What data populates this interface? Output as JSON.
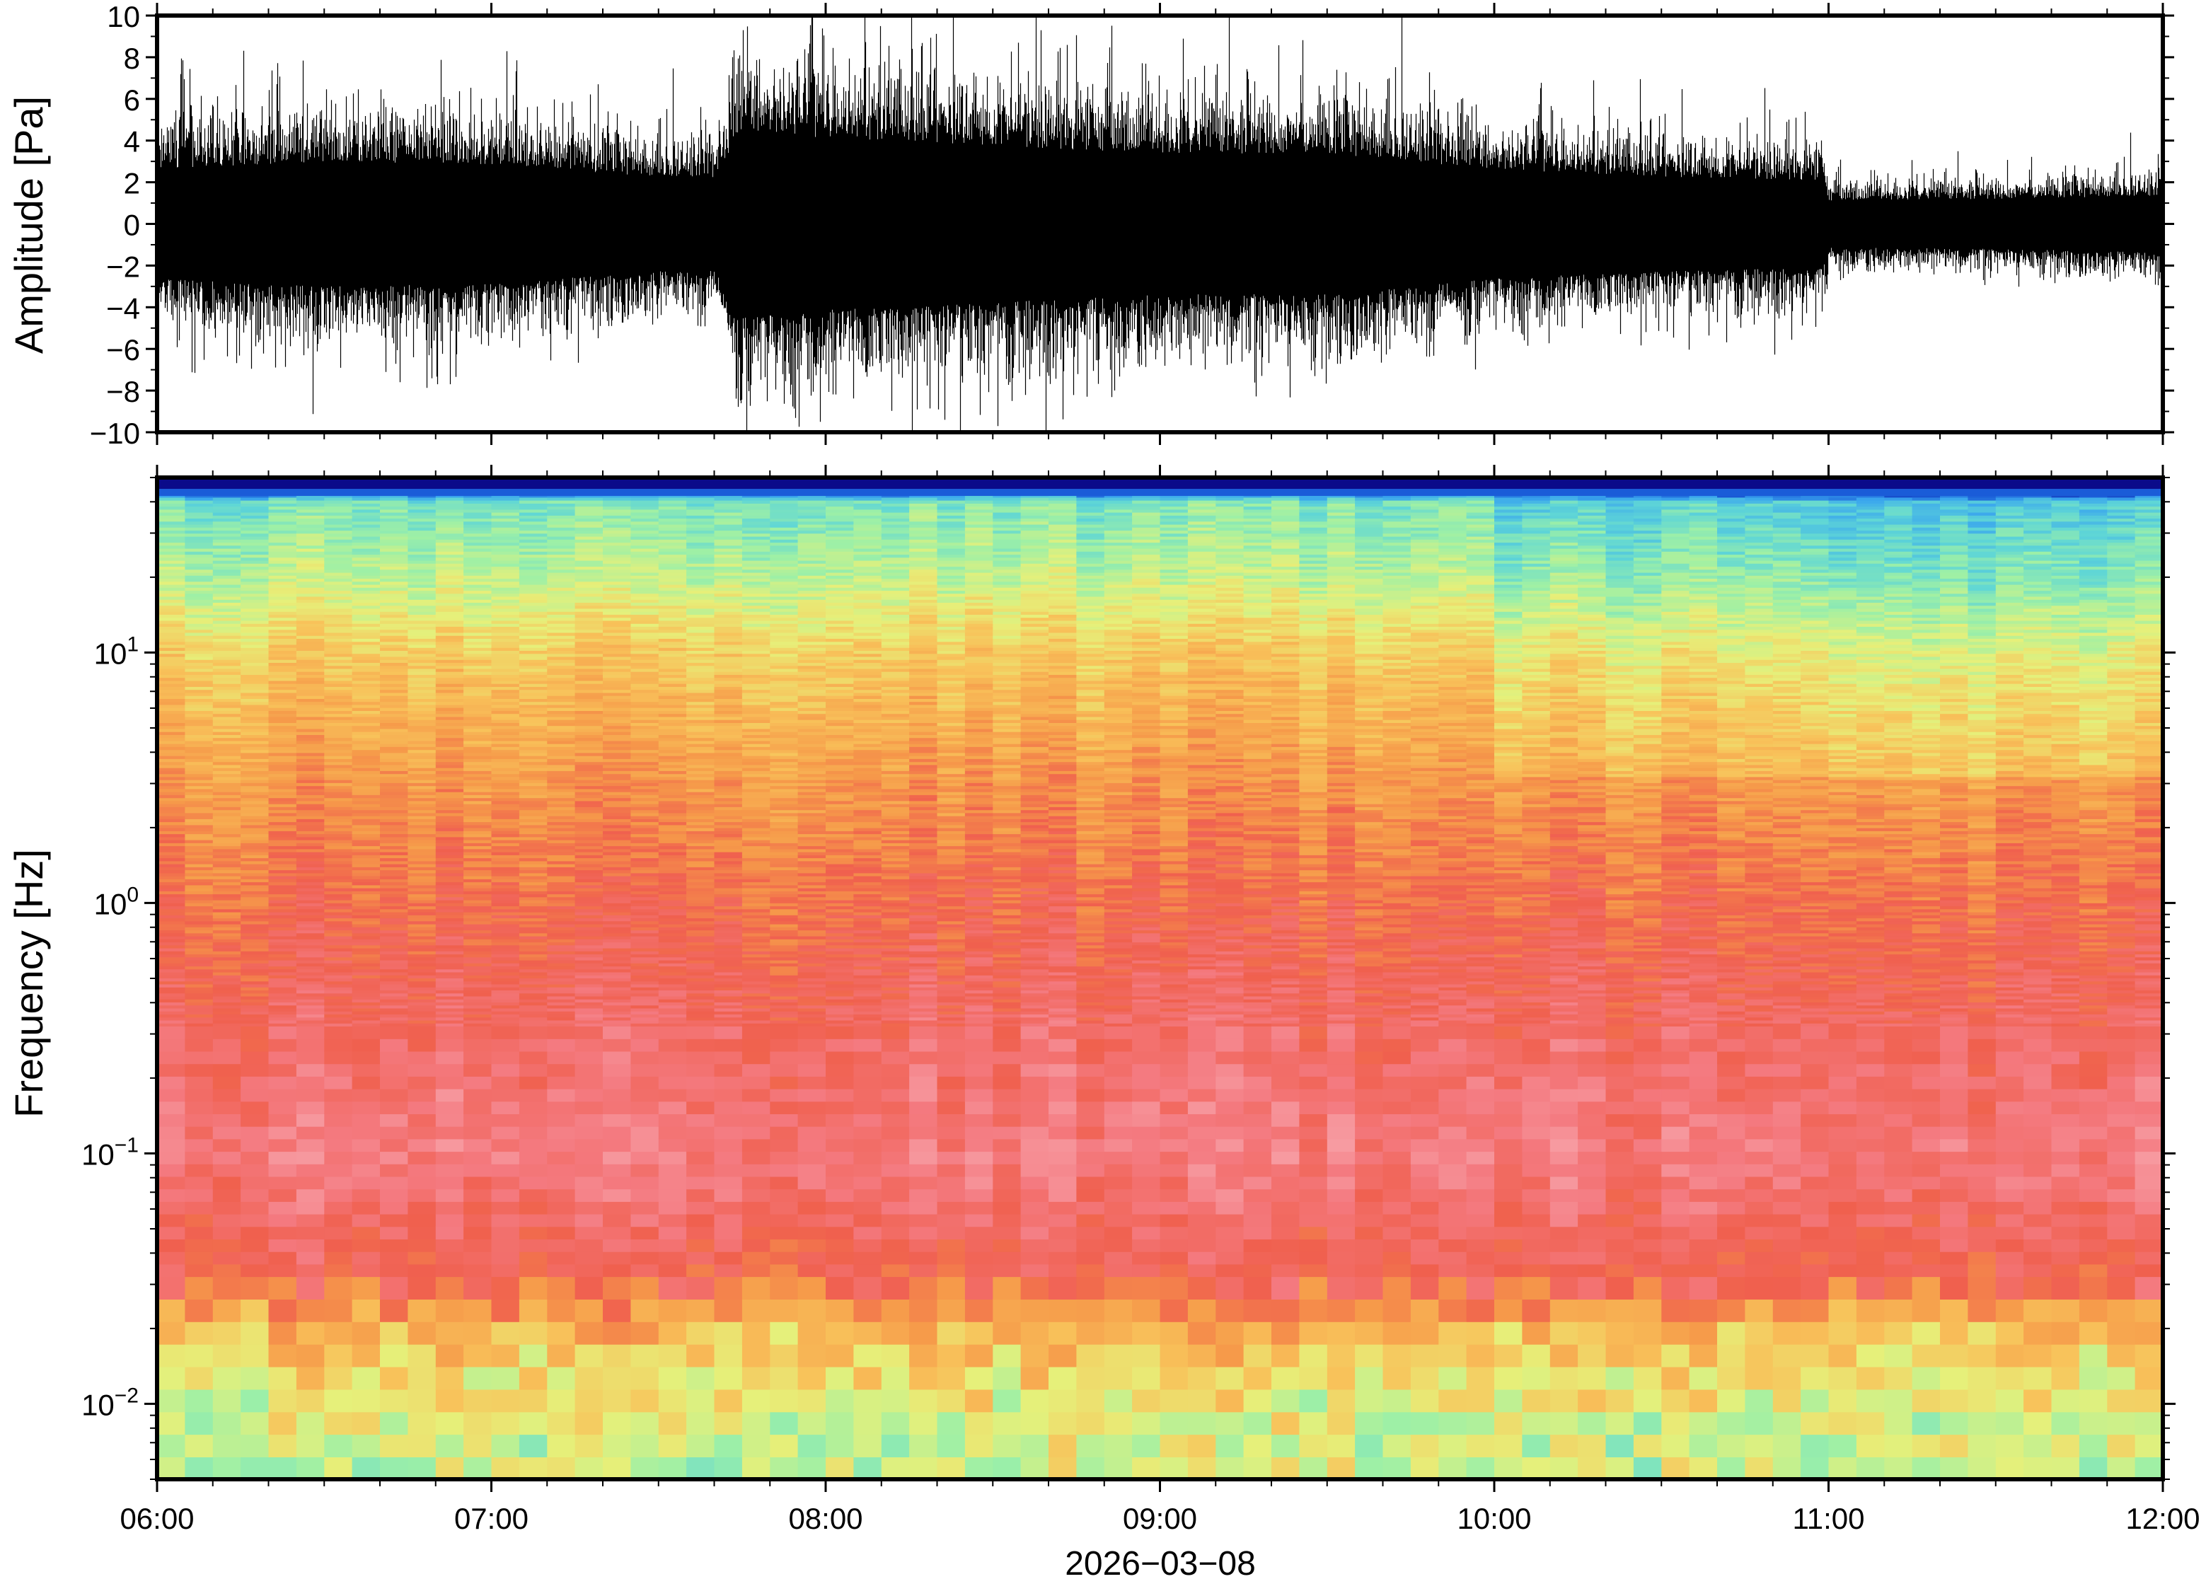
{
  "chart_data": [
    {
      "type": "line",
      "panel": "waveform",
      "ylabel": "Amplitude [Pa]",
      "ylim": [
        -10,
        10
      ],
      "yticks": [
        10,
        8,
        6,
        4,
        2,
        0,
        -2,
        -4,
        -6,
        -8,
        -10
      ],
      "ytick_labels": [
        "10",
        "8",
        "6",
        "4",
        "2",
        "0",
        "−2",
        "−4",
        "−6",
        "−8",
        "−10"
      ],
      "xlim": [
        "06:00",
        "12:00"
      ],
      "color": "#000000",
      "envelope": {
        "time": [
          "06:00",
          "06:30",
          "07:00",
          "07:30",
          "07:40",
          "07:45",
          "08:00",
          "08:30",
          "09:00",
          "09:30",
          "10:00",
          "10:30",
          "10:59",
          "11:00",
          "11:30",
          "12:00"
        ],
        "half_amplitude_pa": [
          3.5,
          4.0,
          3.8,
          3.0,
          3.0,
          6.0,
          5.5,
          5.0,
          4.5,
          4.5,
          3.5,
          3.0,
          2.8,
          1.5,
          1.6,
          1.8
        ]
      }
    },
    {
      "type": "heatmap",
      "panel": "spectrogram",
      "ylabel": "Frequency [Hz]",
      "yscale": "log",
      "ylim": [
        0.005,
        50
      ],
      "yticks": [
        10,
        1,
        0.1,
        0.01
      ],
      "ytick_labels": [
        {
          "base": "10",
          "exp": "1"
        },
        {
          "base": "10",
          "exp": "0"
        },
        {
          "base": "10",
          "exp": "−1"
        },
        {
          "base": "10",
          "exp": "−2"
        }
      ],
      "xlabel": "2026−03−08",
      "xticks": [
        "06:00",
        "07:00",
        "08:00",
        "09:00",
        "10:00",
        "11:00",
        "12:00"
      ],
      "colormap": [
        "#0b0b8a",
        "#1a5cd8",
        "#3aa6ee",
        "#5fd6d6",
        "#9ef0a6",
        "#e6f07a",
        "#f8c25a",
        "#f69a4a",
        "#f0604e",
        "#f47a80",
        "#f8aab0"
      ],
      "relative_level_profile": {
        "frequency_hz": [
          0.005,
          0.01,
          0.02,
          0.03,
          0.1,
          0.3,
          1,
          3,
          10,
          20,
          40,
          45
        ],
        "level": [
          0.45,
          0.5,
          0.62,
          0.8,
          0.9,
          0.85,
          0.78,
          0.7,
          0.58,
          0.45,
          0.35,
          0.05
        ]
      }
    }
  ]
}
